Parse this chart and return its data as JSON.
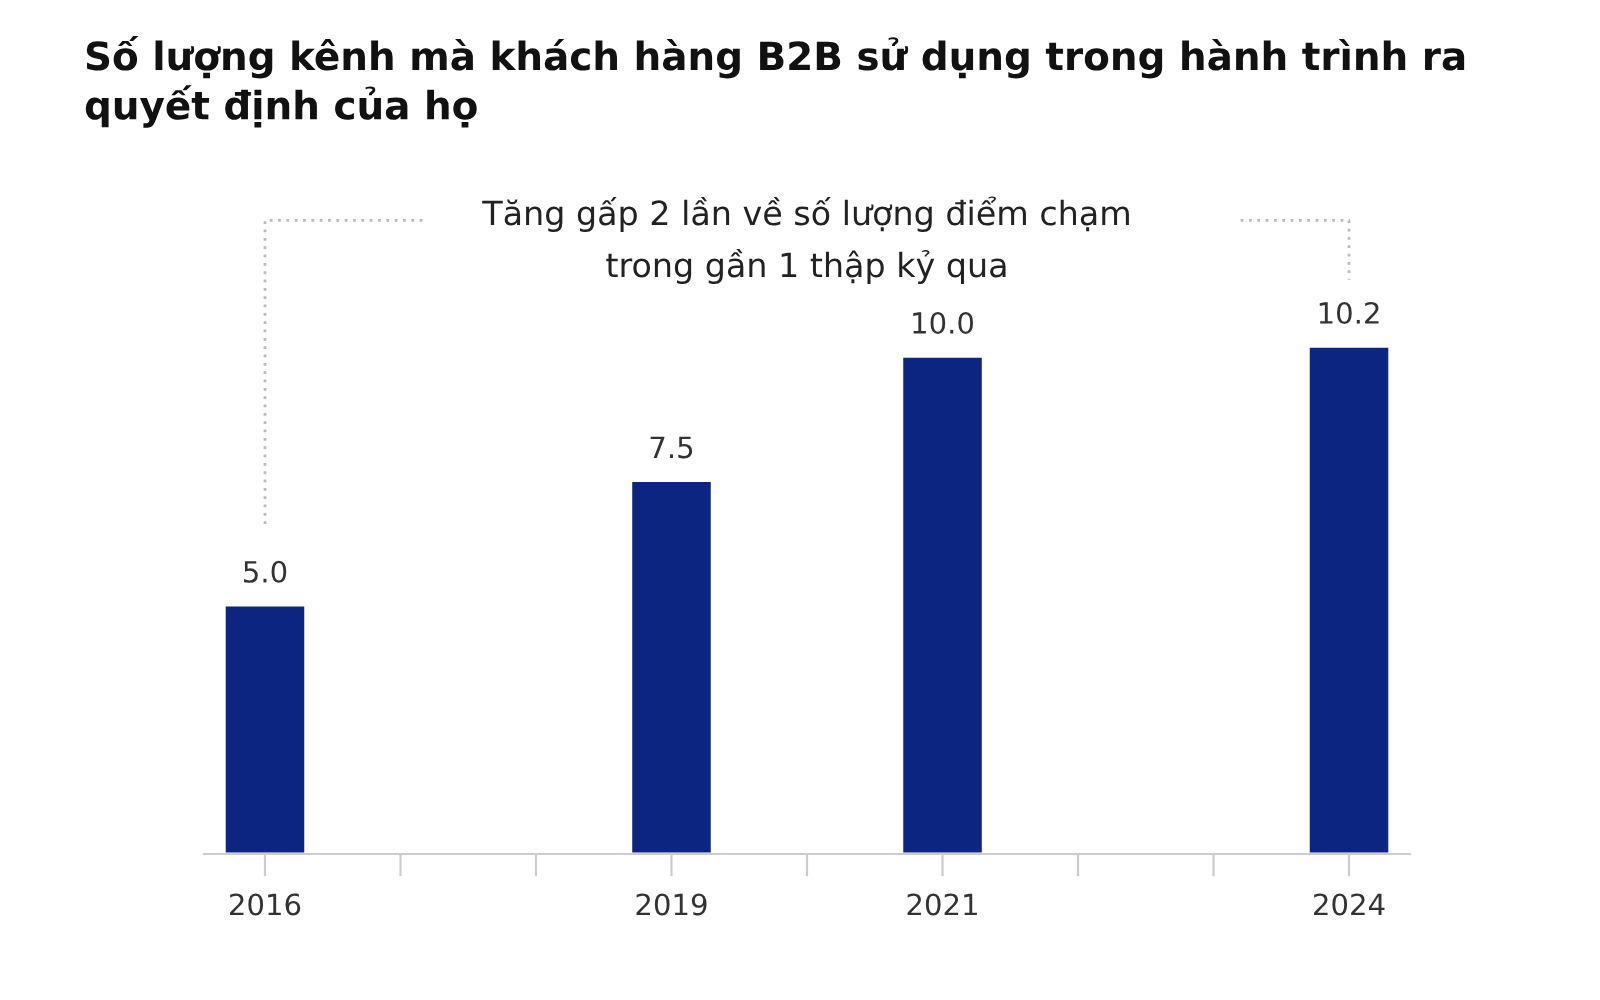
{
  "chart_data": {
    "type": "bar",
    "title": "Số lượng kênh mà khách hàng B2B sử dụng trong hành trình ra quyết định của họ",
    "x": [
      2016,
      2019,
      2021,
      2024
    ],
    "values": [
      5.0,
      7.5,
      10.0,
      10.2
    ],
    "value_labels": [
      "5.0",
      "7.5",
      "10.0",
      "10.2"
    ],
    "color": "#0c2580",
    "xlim": [
      2015.55,
      2024.45
    ],
    "xticks": [
      {
        "value": 2016,
        "label": "2016"
      },
      {
        "value": 2017,
        "label": null
      },
      {
        "value": 2018,
        "label": null
      },
      {
        "value": 2019,
        "label": "2019"
      },
      {
        "value": 2020,
        "label": null
      },
      {
        "value": 2021,
        "label": "2021"
      },
      {
        "value": 2022,
        "label": null
      },
      {
        "value": 2023,
        "label": null
      },
      {
        "value": 2024,
        "label": "2024"
      }
    ],
    "tick_labels": "x",
    "grid": false,
    "legend": false,
    "annotations": [
      "Tăng gấp 2 lần về số lượng điểm chạm\ntrong gần 1 thập kỷ qua"
    ]
  }
}
